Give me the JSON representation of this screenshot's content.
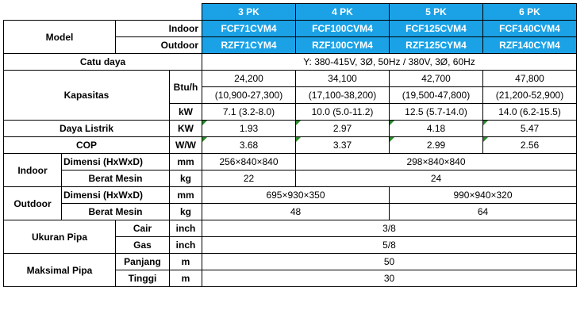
{
  "header": {
    "capacities": [
      "3 PK",
      "4 PK",
      "5 PK",
      "6 PK"
    ]
  },
  "model": {
    "label": "Model",
    "indoor_label": "Indoor",
    "outdoor_label": "Outdoor",
    "indoor": [
      "FCF71CVM4",
      "FCF100CVM4",
      "FCF125CVM4",
      "FCF140CVM4"
    ],
    "outdoor": [
      "RZF71CYM4",
      "RZF100CYM4",
      "RZF125CYM4",
      "RZF140CYM4"
    ]
  },
  "power_supply": {
    "label": "Catu daya",
    "value": "Y: 380-415V, 3Ø, 50Hz / 380V, 3Ø, 60Hz"
  },
  "capacity": {
    "label": "Kapasitas",
    "unit_btu": "Btu/h",
    "unit_kw": "kW",
    "btu": [
      "24,200",
      "34,100",
      "42,700",
      "47,800"
    ],
    "btu_range": [
      "(10,900-27,300)",
      "(17,100-38,200)",
      "(19,500-47,800)",
      "(21,200-52,900)"
    ],
    "kw": [
      "7.1 (3.2-8.0)",
      "10.0 (5.0-11.2)",
      "12.5 (5.7-14.0)",
      "14.0 (6.2-15.5)"
    ]
  },
  "power_input": {
    "label": "Daya Listrik",
    "unit": "KW",
    "values": [
      "1.93",
      "2.97",
      "4.18",
      "5.47"
    ]
  },
  "cop": {
    "label": "COP",
    "unit": "W/W",
    "values": [
      "3.68",
      "3.37",
      "2.99",
      "2.56"
    ]
  },
  "indoor": {
    "label": "Indoor",
    "dim_label": "Dimensi (HxWxD)",
    "dim_unit": "mm",
    "dim_values": [
      "256×840×840",
      "298×840×840"
    ],
    "weight_label": "Berat Mesin",
    "weight_unit": "kg",
    "weight_values": [
      "22",
      "24"
    ]
  },
  "outdoor": {
    "label": "Outdoor",
    "dim_label": "Dimensi (HxWxD)",
    "dim_unit": "mm",
    "dim_values": [
      "695×930×350",
      "990×940×320"
    ],
    "weight_label": "Berat Mesin",
    "weight_unit": "kg",
    "weight_values": [
      "48",
      "64"
    ]
  },
  "pipe_size": {
    "label": "Ukuran Pipa",
    "liquid_label": "Cair",
    "gas_label": "Gas",
    "unit": "inch",
    "liquid": "3/8",
    "gas": "5/8"
  },
  "max_pipe": {
    "label": "Maksimal Pipa",
    "length_label": "Panjang",
    "height_label": "Tinggi",
    "unit": "m",
    "length": "50",
    "height": "30"
  }
}
